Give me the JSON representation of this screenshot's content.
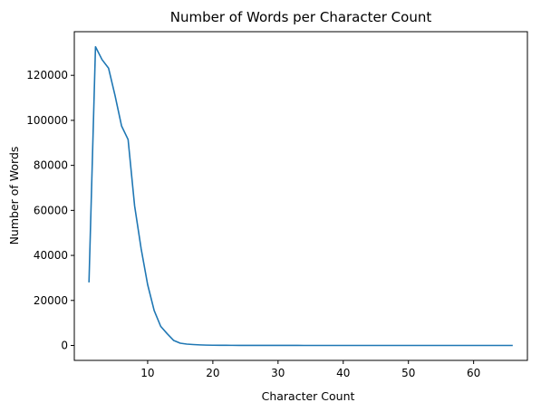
{
  "chart_data": {
    "type": "line",
    "title": "Number of Words per Character Count",
    "xlabel": "Character Count",
    "ylabel": "Number of Words",
    "xlim": [
      -1.25,
      68.25
    ],
    "ylim": [
      -6639,
      139389
    ],
    "xticks": [
      10,
      20,
      30,
      40,
      50,
      60
    ],
    "yticks": [
      0,
      20000,
      40000,
      60000,
      80000,
      100000,
      120000
    ],
    "xtick_labels": [
      "10",
      "20",
      "30",
      "40",
      "50",
      "60"
    ],
    "ytick_labels": [
      "0",
      "20000",
      "40000",
      "60000",
      "80000",
      "100000",
      "120000"
    ],
    "grid": false,
    "line_color": "#1f77b4",
    "series": [
      {
        "x": [
          1,
          2,
          3,
          4,
          5,
          6,
          7,
          8,
          9,
          10,
          11,
          12,
          13,
          14,
          15,
          16,
          17,
          18,
          19,
          20,
          21,
          22,
          23,
          24,
          25,
          26,
          27,
          28,
          29,
          30,
          31,
          32,
          33,
          34,
          35,
          36,
          37,
          38,
          39,
          40,
          41,
          42,
          43,
          44,
          45,
          46,
          47,
          48,
          49,
          50,
          51,
          52,
          53,
          54,
          55,
          56,
          57,
          58,
          59,
          60,
          61,
          62,
          63,
          64,
          65,
          66
        ],
        "values": [
          28000,
          132700,
          127000,
          123200,
          111000,
          97500,
          91500,
          62000,
          43000,
          27000,
          15500,
          8500,
          5200,
          2200,
          1000,
          600,
          400,
          250,
          150,
          100,
          80,
          60,
          50,
          40,
          30,
          20,
          15,
          10,
          10,
          5,
          5,
          5,
          5,
          3,
          3,
          3,
          2,
          2,
          2,
          2,
          1,
          1,
          1,
          1,
          1,
          1,
          1,
          1,
          1,
          1,
          1,
          1,
          1,
          1,
          1,
          1,
          1,
          1,
          1,
          1,
          1,
          1,
          1,
          1,
          1,
          1
        ]
      }
    ]
  }
}
